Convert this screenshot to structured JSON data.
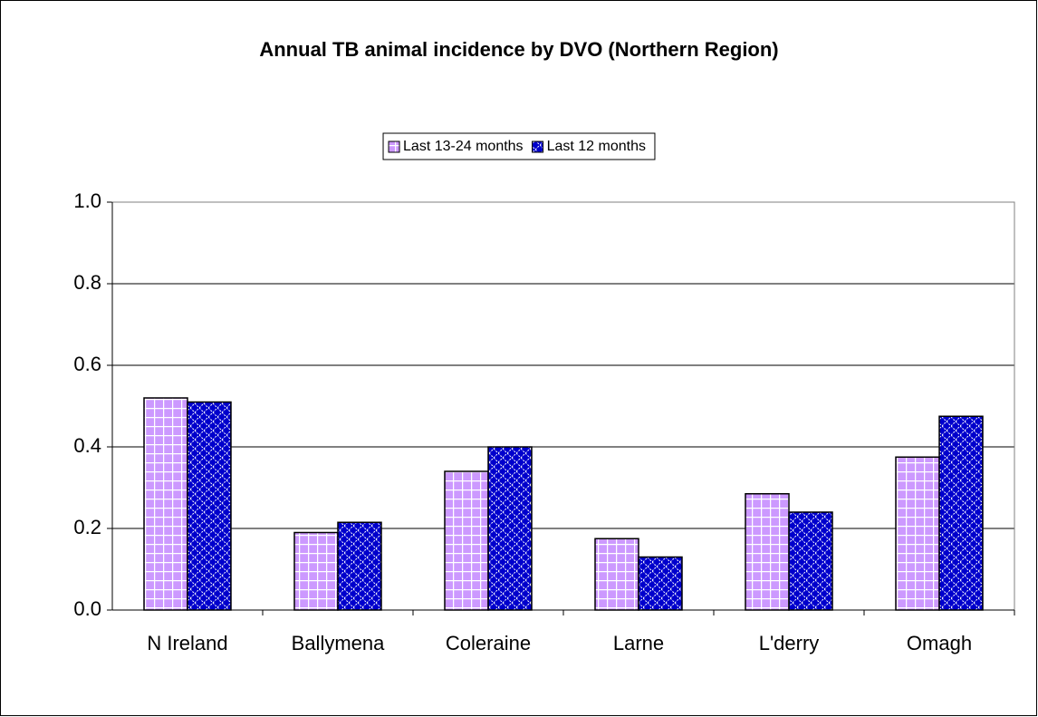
{
  "chart_data": {
    "type": "bar",
    "title": "Annual TB animal incidence by DVO (Northern Region)",
    "categories": [
      "N Ireland",
      "Ballymena",
      "Coleraine",
      "Larne",
      "L'derry",
      "Omagh"
    ],
    "series": [
      {
        "name": "Last 13-24 months",
        "color": "#cc99ff",
        "values": [
          0.52,
          0.19,
          0.34,
          0.175,
          0.285,
          0.375
        ]
      },
      {
        "name": "Last 12 months",
        "color": "#0000cc",
        "values": [
          0.51,
          0.215,
          0.4,
          0.13,
          0.24,
          0.475
        ]
      }
    ],
    "ylim": [
      0,
      1
    ],
    "yticks": [
      {
        "value": 0,
        "label": "0.0"
      },
      0.2,
      0.4,
      0.6,
      0.8,
      {
        "value": 1,
        "label": "1.0"
      }
    ],
    "grid": true,
    "legend": "top"
  }
}
